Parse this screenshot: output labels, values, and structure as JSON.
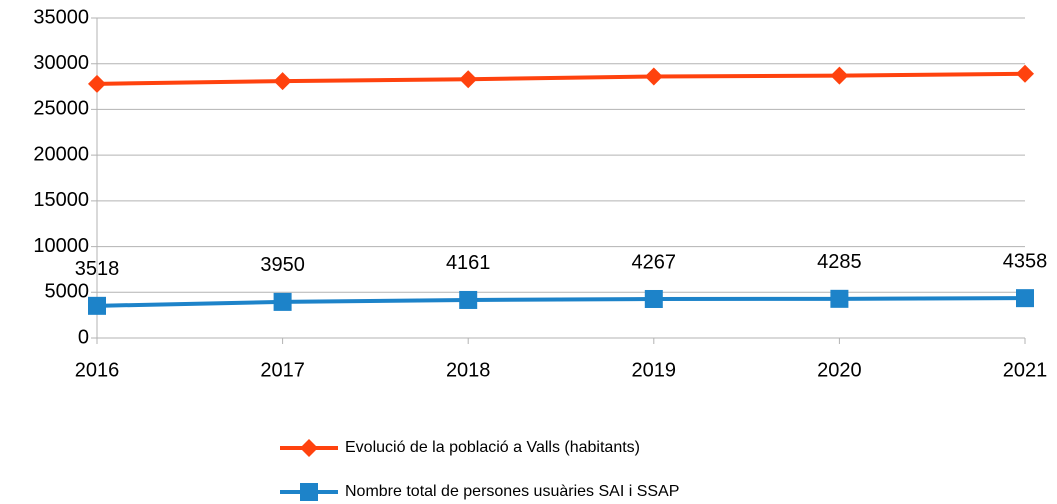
{
  "chart_data": {
    "type": "line",
    "x": [
      2016,
      2017,
      2018,
      2019,
      2020,
      2021
    ],
    "xlim": [
      2016,
      2021
    ],
    "xticks": [
      2016,
      2017,
      2018,
      2019,
      2020,
      2021
    ],
    "ylim": [
      0,
      35000
    ],
    "yticks": [
      0,
      5000,
      10000,
      15000,
      20000,
      25000,
      30000,
      35000
    ],
    "grid": true,
    "legend": "bottom",
    "series": [
      {
        "name": "Evolució de la població a Valls (habitants)",
        "color": "#ff420e",
        "marker": "diamond",
        "values": [
          27800,
          28100,
          28300,
          28600,
          28700,
          28900
        ]
      },
      {
        "name": "Nombre total de persones usuàries SAI i SSAP",
        "color": "#1d83c9",
        "marker": "square",
        "data_labels": true,
        "values": [
          3518,
          3950,
          4161,
          4267,
          4285,
          4358
        ]
      }
    ]
  }
}
